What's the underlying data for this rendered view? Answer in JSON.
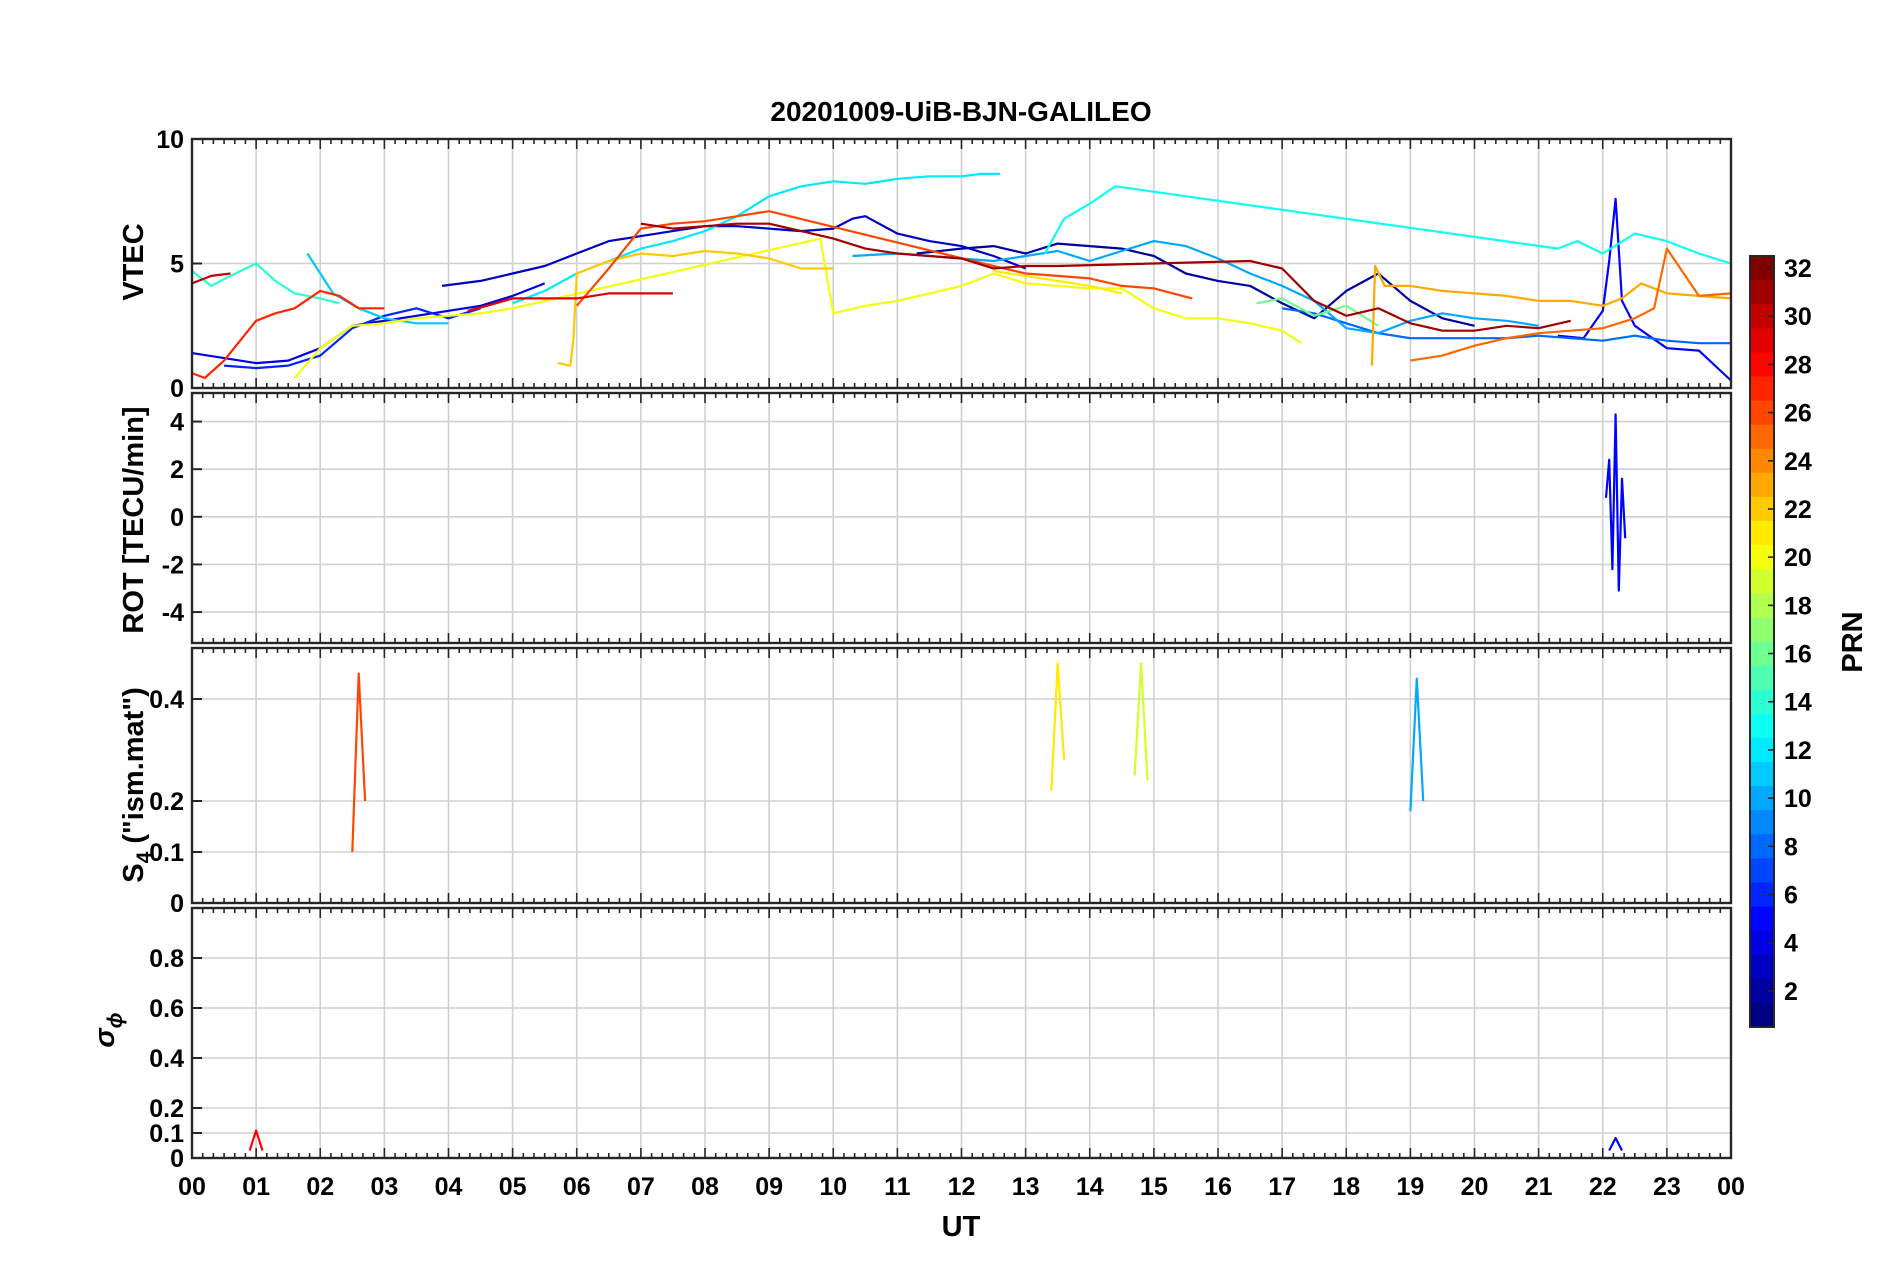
{
  "chart_data": {
    "type": "line",
    "title": "20201009-UiB-BJN-GALILEO",
    "xlabel": "UT",
    "x_range_hours": [
      0,
      24
    ],
    "x_tick_labels": [
      "00",
      "01",
      "02",
      "03",
      "04",
      "05",
      "06",
      "07",
      "08",
      "09",
      "10",
      "11",
      "12",
      "13",
      "14",
      "15",
      "16",
      "17",
      "18",
      "19",
      "20",
      "21",
      "22",
      "23",
      "00"
    ],
    "grid": true,
    "colorbar": {
      "label": "PRN",
      "range": [
        1,
        32
      ],
      "colormap": "jet",
      "tick_labels": [
        "2",
        "4",
        "6",
        "8",
        "10",
        "12",
        "14",
        "16",
        "18",
        "20",
        "22",
        "24",
        "26",
        "28",
        "30",
        "32"
      ],
      "placement": "right"
    },
    "panels": [
      {
        "key": "vtec",
        "ylabel": "VTEC",
        "ylim": [
          0,
          10
        ],
        "yticks": [
          "0",
          "5",
          "10"
        ],
        "series": [
          {
            "prn": 2,
            "x": [
              11.3,
              12,
              12.5,
              13,
              13.5,
              14,
              14.5,
              15,
              15.5,
              16,
              16.5,
              17,
              17.5,
              18,
              18.5,
              19,
              19.5,
              20
            ],
            "y": [
              5.4,
              5.6,
              5.7,
              5.4,
              5.8,
              5.7,
              5.6,
              5.3,
              4.6,
              4.3,
              4.1,
              3.4,
              2.8,
              3.9,
              4.6,
              3.5,
              2.8,
              2.5
            ]
          },
          {
            "prn": 3,
            "x": [
              3.9,
              4.5,
              5,
              5.5,
              6,
              6.5,
              7,
              7.5,
              8,
              8.5,
              9,
              9.5,
              10,
              10.3,
              10.5,
              11,
              11.5,
              12,
              12.5,
              13
            ],
            "y": [
              4.1,
              4.3,
              4.6,
              4.9,
              5.4,
              5.9,
              6.1,
              6.3,
              6.5,
              6.5,
              6.4,
              6.3,
              6.4,
              6.8,
              6.9,
              6.2,
              5.9,
              5.7,
              5.3,
              4.8
            ]
          },
          {
            "prn": 4,
            "x": [
              0,
              0.5,
              1,
              1.5,
              2,
              2.5,
              3,
              3.5,
              4,
              4.5,
              5,
              5.5
            ],
            "y": [
              1.4,
              1.2,
              1.0,
              1.1,
              1.6,
              2.5,
              2.7,
              2.9,
              3.1,
              3.3,
              3.7,
              4.2
            ]
          },
          {
            "prn": 5,
            "x": [
              21.3,
              21.7,
              22,
              22.1,
              22.2,
              22.3,
              22.5,
              23,
              23.5,
              24
            ],
            "y": [
              2.1,
              2.0,
              3.1,
              5.1,
              7.6,
              3.5,
              2.5,
              1.6,
              1.5,
              0.3
            ]
          },
          {
            "prn": 6,
            "x": [
              0.5,
              1,
              1.5,
              2,
              2.5,
              3,
              3.5,
              4,
              4.5
            ],
            "y": [
              0.9,
              0.8,
              0.9,
              1.3,
              2.4,
              2.9,
              3.2,
              2.8,
              3.2
            ]
          },
          {
            "prn": 8,
            "x": [
              17,
              17.5,
              18,
              18.5,
              19,
              19.5,
              20,
              20.5,
              21,
              21.5,
              22,
              22.5,
              23,
              23.5,
              24
            ],
            "y": [
              3.2,
              3.0,
              2.6,
              2.2,
              2.0,
              2.0,
              2.0,
              2.0,
              2.1,
              2.0,
              1.9,
              2.1,
              1.9,
              1.8,
              1.8
            ]
          },
          {
            "prn": 10,
            "x": [
              10.3,
              11,
              11.5,
              12,
              12.5,
              13,
              13.5,
              14,
              14.5,
              15,
              15.5,
              16,
              16.5,
              17,
              17.5,
              18,
              18.5,
              19,
              19.5,
              20,
              20.5,
              21
            ],
            "y": [
              5.3,
              5.4,
              5.3,
              5.2,
              5.1,
              5.3,
              5.5,
              5.1,
              5.5,
              5.9,
              5.7,
              5.2,
              4.6,
              4.1,
              3.5,
              2.4,
              2.2,
              2.7,
              3.0,
              2.8,
              2.7,
              2.5
            ]
          },
          {
            "prn": 11,
            "x": [
              1.8,
              2.2,
              2.6,
              3,
              3.5,
              4
            ],
            "y": [
              5.4,
              3.8,
              3.2,
              2.8,
              2.6,
              2.6
            ]
          },
          {
            "prn": 12,
            "x": [
              5,
              5.5,
              6,
              6.5,
              7,
              7.5,
              8,
              8.5,
              9,
              9.5,
              10,
              10.5,
              11,
              11.5,
              12,
              12.3,
              12.6
            ],
            "y": [
              3.4,
              3.9,
              4.6,
              5.1,
              5.6,
              5.9,
              6.3,
              6.9,
              7.7,
              8.1,
              8.3,
              8.2,
              8.4,
              8.5,
              8.5,
              8.6,
              8.6
            ]
          },
          {
            "prn": 13,
            "x": [
              13.3,
              13.6,
              14,
              14.4,
              21.3,
              21.6,
              22,
              22.5,
              23,
              23.5,
              24
            ],
            "y": [
              5.4,
              6.8,
              7.4,
              8.1,
              5.6,
              5.9,
              5.4,
              6.2,
              5.9,
              5.4,
              5.0
            ]
          },
          {
            "prn": 14,
            "x": [
              0,
              0.3,
              0.6,
              1,
              1.3,
              1.6,
              2,
              2.3
            ],
            "y": [
              4.7,
              4.1,
              4.5,
              5.0,
              4.3,
              3.8,
              3.6,
              3.4
            ]
          },
          {
            "prn": 16,
            "x": [
              16.6,
              17,
              17.5,
              18,
              18.5
            ],
            "y": [
              3.4,
              3.6,
              2.9,
              3.3,
              2.5
            ]
          },
          {
            "prn": 20,
            "x": [
              1.6,
              2,
              2.5,
              3,
              3.5,
              4,
              4.5,
              5,
              9.8,
              10,
              10.5,
              11,
              11.5,
              12,
              12.5,
              13,
              13.5,
              14,
              14.5,
              15,
              15.5,
              16,
              16.5,
              17,
              17.3
            ],
            "y": [
              0.4,
              1.6,
              2.5,
              2.6,
              2.8,
              2.9,
              3.0,
              3.2,
              6.0,
              3.0,
              3.3,
              3.5,
              3.8,
              4.1,
              4.6,
              4.2,
              4.1,
              4.0,
              4.0,
              3.2,
              2.8,
              2.8,
              2.6,
              2.3,
              1.8
            ]
          },
          {
            "prn": 21,
            "x": [
              12.5,
              13,
              13.5,
              14,
              14.5
            ],
            "y": [
              4.7,
              4.5,
              4.3,
              4.1,
              3.8
            ]
          },
          {
            "prn": 22,
            "x": [
              5.7,
              5.9,
              5.95,
              6,
              6.5,
              7,
              7.5,
              8,
              8.5,
              9,
              9.5,
              10
            ],
            "y": [
              1.0,
              0.9,
              2.0,
              4.6,
              5.1,
              5.4,
              5.3,
              5.5,
              5.4,
              5.2,
              4.8,
              4.8
            ]
          },
          {
            "prn": 23,
            "x": [
              18.4,
              18.45,
              18.6,
              19,
              19.5,
              20,
              20.5,
              21,
              21.5,
              22,
              22.3,
              22.6,
              23,
              23.5,
              24
            ],
            "y": [
              0.9,
              4.9,
              4.1,
              4.1,
              3.9,
              3.8,
              3.7,
              3.5,
              3.5,
              3.3,
              3.6,
              4.2,
              3.8,
              3.7,
              3.6
            ]
          },
          {
            "prn": 25,
            "x": [
              19,
              19.5,
              20,
              20.5,
              21,
              21.5,
              22,
              22.5,
              22.8,
              23,
              23.5,
              24
            ],
            "y": [
              1.1,
              1.3,
              1.7,
              2.0,
              2.2,
              2.3,
              2.4,
              2.8,
              3.2,
              5.6,
              3.7,
              3.8
            ]
          },
          {
            "prn": 26,
            "x": [
              6,
              6.5,
              7,
              7.5,
              8,
              8.5,
              9,
              12.5,
              13,
              13.5,
              14,
              14.5,
              15,
              15.6
            ],
            "y": [
              3.3,
              4.8,
              6.4,
              6.6,
              6.7,
              6.9,
              7.1,
              4.9,
              4.6,
              4.5,
              4.4,
              4.1,
              4.0,
              3.6
            ]
          },
          {
            "prn": 27,
            "x": [
              0,
              0.2,
              0.5,
              1,
              1.3,
              1.6,
              2,
              2.3,
              2.6,
              3
            ],
            "y": [
              0.6,
              0.4,
              1.1,
              2.7,
              3.0,
              3.2,
              3.9,
              3.7,
              3.2,
              3.2
            ]
          },
          {
            "prn": 29,
            "x": [
              4.3,
              4.6,
              5,
              5.5,
              6,
              6.5,
              7,
              7.5
            ],
            "y": [
              3.1,
              3.3,
              3.6,
              3.6,
              3.6,
              3.8,
              3.8,
              3.8
            ]
          },
          {
            "prn": 30,
            "x": [
              0,
              0.3,
              0.6
            ],
            "y": [
              4.2,
              4.5,
              4.6
            ]
          },
          {
            "prn": 31,
            "x": [
              7,
              7.5,
              8,
              8.5,
              9,
              9.5,
              10,
              10.5,
              11,
              11.5,
              12,
              12.5,
              13,
              13.5,
              16.5,
              17,
              17.5,
              18,
              18.5,
              19,
              19.5,
              20,
              20.5,
              21,
              21.5
            ],
            "y": [
              6.6,
              6.4,
              6.5,
              6.6,
              6.6,
              6.3,
              6.0,
              5.6,
              5.4,
              5.3,
              5.2,
              4.8,
              4.9,
              4.9,
              5.1,
              4.8,
              3.5,
              2.9,
              3.2,
              2.6,
              2.3,
              2.3,
              2.5,
              2.4,
              2.7
            ]
          }
        ]
      },
      {
        "key": "rot",
        "ylabel": "ROT [TECU/min]",
        "ylim": [
          -5.3,
          5.2
        ],
        "yticks": [
          "-4",
          "-2",
          "0",
          "2",
          "4"
        ],
        "series": [
          {
            "prn": 5,
            "x": [
              22.05,
              22.1,
              22.15,
              22.2,
              22.25,
              22.3,
              22.35
            ],
            "y": [
              0.8,
              2.4,
              -2.2,
              4.3,
              -3.1,
              1.6,
              -0.9
            ]
          }
        ]
      },
      {
        "key": "s4",
        "ylabel_main": "S",
        "ylabel_sub": "4",
        "ylabel_tail": " (\"ism.mat\")",
        "ylim": [
          0,
          0.5
        ],
        "yticks": [
          "0",
          "0.1",
          "0.2",
          "0.4"
        ],
        "series": [
          {
            "prn": 26,
            "x": [
              2.5,
              2.6,
              2.7
            ],
            "y": [
              0.1,
              0.45,
              0.2
            ]
          },
          {
            "prn": 21,
            "x": [
              13.4,
              13.5,
              13.6
            ],
            "y": [
              0.22,
              0.47,
              0.28
            ]
          },
          {
            "prn": 19,
            "x": [
              14.7,
              14.8,
              14.9
            ],
            "y": [
              0.25,
              0.47,
              0.24
            ]
          },
          {
            "prn": 10,
            "x": [
              19.0,
              19.1,
              19.2
            ],
            "y": [
              0.18,
              0.44,
              0.2
            ]
          }
        ]
      },
      {
        "key": "sigma",
        "ylabel_main": "σ",
        "ylabel_sub": "ϕ",
        "ylim": [
          0,
          1.0
        ],
        "yticks": [
          "0",
          "0.1",
          "0.2",
          "0.4",
          "0.6",
          "0.8"
        ],
        "series": [
          {
            "prn": 28,
            "x": [
              0.9,
              1.0,
              1.1
            ],
            "y": [
              0.03,
              0.11,
              0.03
            ]
          },
          {
            "prn": 5,
            "x": [
              22.1,
              22.2,
              22.3
            ],
            "y": [
              0.03,
              0.08,
              0.03
            ]
          }
        ]
      }
    ]
  }
}
